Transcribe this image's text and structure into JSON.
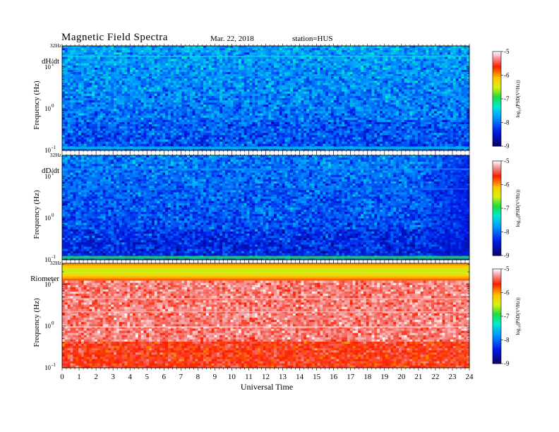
{
  "header": {
    "title": "Magnetic  Field  Spectra",
    "date": "Mar. 22, 2018",
    "station": "station=HUS"
  },
  "chart_data": {
    "type": "heatmap",
    "xlabel": "Universal Time",
    "x_ticks": [
      "0",
      "1",
      "2",
      "3",
      "4",
      "5",
      "6",
      "7",
      "8",
      "9",
      "10",
      "11",
      "12",
      "13",
      "14",
      "15",
      "16",
      "17",
      "18",
      "19",
      "20",
      "21",
      "22",
      "23",
      "24"
    ],
    "xlim": [
      0,
      24
    ],
    "ylabel": "Frequency  (Hz)",
    "y_scale": "log",
    "ylim": [
      0.1,
      32
    ],
    "y_ticks": [
      {
        "base": "10",
        "exp": "-1"
      },
      {
        "base": "10",
        "exp": "0"
      },
      {
        "base": "10",
        "exp": "1"
      }
    ],
    "y_top_label": "32Hz",
    "colorbar": {
      "label": "log₁₀(PSD(V²/Hz))",
      "range": [
        -9,
        -5
      ],
      "ticks": [
        "-5",
        "-6",
        "-7",
        "-8",
        "-9"
      ]
    },
    "panels": [
      {
        "name": "dH/dt",
        "typical_log_psd": -7.9,
        "horizontal_lines": [
          {
            "frequency": 18,
            "log_psd": -7.4
          },
          {
            "frequency": 6,
            "log_psd": -7.8
          }
        ],
        "low_frequency_band": {
          "frequency": 0.11,
          "log_psd": -7.6
        }
      },
      {
        "name": "dD/dt",
        "typical_log_psd": -8.1,
        "horizontal_lines": [
          {
            "frequency": 15,
            "log_psd": -7.8
          },
          {
            "frequency": 5,
            "log_psd": -8.0
          }
        ],
        "low_frequency_band": {
          "frequency": 0.11,
          "log_psd": -7.0
        },
        "late_day_dimming": {
          "from_hour": 21,
          "log_psd": -8.6
        }
      },
      {
        "name": "Riometer",
        "typical_log_psd": -5.6,
        "upper_band": {
          "frequency_range": [
            12,
            32
          ],
          "log_psd_range": [
            -6.6,
            -5.7
          ]
        },
        "horizontal_lines": [
          {
            "frequency": 4.5,
            "log_psd": -5.2
          },
          {
            "frequency": 2.2,
            "log_psd": -5.2
          },
          {
            "frequency": 0.95,
            "log_psd": -5.1
          }
        ]
      }
    ]
  }
}
